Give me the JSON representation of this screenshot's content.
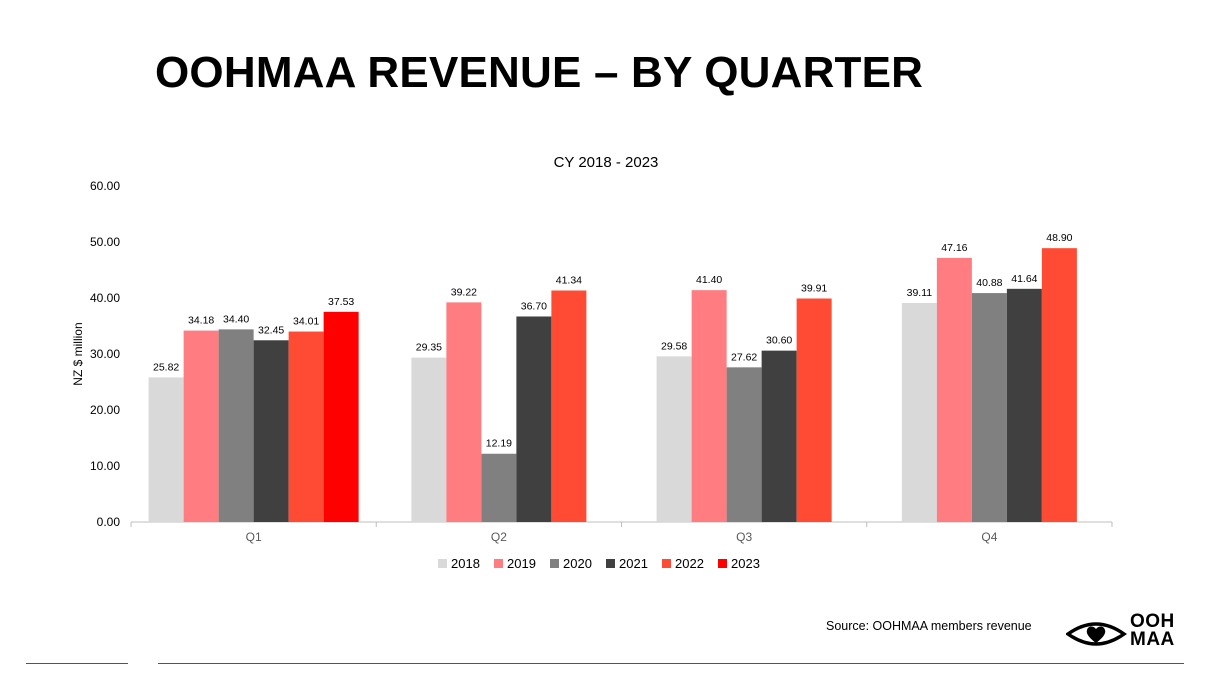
{
  "page": {
    "title": "OOHMAA REVENUE – BY QUARTER",
    "source": "Source: OOHMAA members revenue",
    "logo": {
      "line1": "OOH",
      "line2": "MAA"
    }
  },
  "chart_data": {
    "type": "bar",
    "title": "CY 2018 - 2023",
    "xlabel": "",
    "ylabel": "NZ $ million",
    "ylim": [
      0,
      60
    ],
    "yticks": [
      "0.00",
      "10.00",
      "20.00",
      "30.00",
      "40.00",
      "50.00",
      "60.00"
    ],
    "categories": [
      "Q1",
      "Q2",
      "Q3",
      "Q4"
    ],
    "grid": false,
    "legend_position": "bottom",
    "series": [
      {
        "name": "2018",
        "color": "#d9d9d9",
        "values": [
          25.82,
          29.35,
          29.58,
          39.11
        ],
        "labels": [
          "25.82",
          "29.35",
          "29.58",
          "39.11"
        ]
      },
      {
        "name": "2019",
        "color": "#ff7c80",
        "values": [
          34.18,
          39.22,
          41.4,
          47.16
        ],
        "labels": [
          "34.18",
          "39.22",
          "41.40",
          "47.16"
        ]
      },
      {
        "name": "2020",
        "color": "#808080",
        "values": [
          34.4,
          12.19,
          27.62,
          40.88
        ],
        "labels": [
          "34.40",
          "12.19",
          "27.62",
          "40.88"
        ]
      },
      {
        "name": "2021",
        "color": "#404040",
        "values": [
          32.45,
          36.7,
          30.6,
          41.64
        ],
        "labels": [
          "32.45",
          "36.70",
          "30.60",
          "41.64"
        ]
      },
      {
        "name": "2022",
        "color": "#ff4b33",
        "values": [
          34.01,
          41.34,
          39.91,
          48.9
        ],
        "labels": [
          "34.01",
          "41.34",
          "39.91",
          "48.90"
        ]
      },
      {
        "name": "2023",
        "color": "#ff0000",
        "values": [
          37.53,
          null,
          null,
          null
        ],
        "labels": [
          "37.53",
          null,
          null,
          null
        ]
      }
    ]
  }
}
